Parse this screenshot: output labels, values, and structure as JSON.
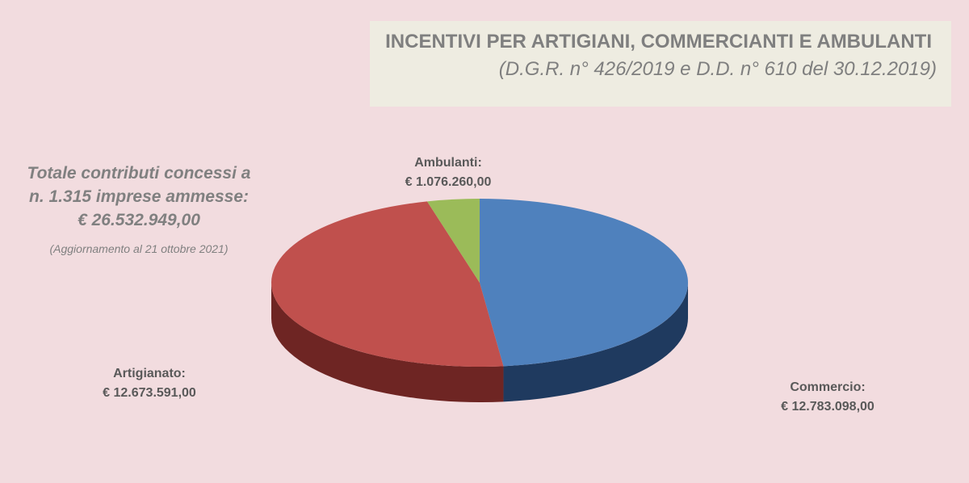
{
  "header": {
    "title": "INCENTIVI PER ARTIGIANI, COMMERCIANTI E AMBULANTI",
    "subtitle": "(D.G.R. n° 426/2019 e D.D. n° 610 del 30.12.2019)"
  },
  "summary": {
    "line1": "Totale contributi concessi a",
    "line2": "n. 1.315 imprese ammesse:",
    "line3": "€ 26.532.949,00",
    "note": "(Aggiornamento  al 21 ottobre 2021)"
  },
  "chart_data": {
    "type": "pie",
    "style": "3d",
    "categories": [
      "Commercio",
      "Artigianato",
      "Ambulanti"
    ],
    "values": [
      12783098.0,
      12673591.0,
      1076260.0
    ],
    "labels": [
      {
        "name": "Commercio:",
        "value": "€ 12.783.098,00"
      },
      {
        "name": "Artigianato:",
        "value": "€ 12.673.591,00"
      },
      {
        "name": "Ambulanti:",
        "value": "€ 1.076.260,00"
      }
    ],
    "colors": [
      "#4f81bd",
      "#c0504d",
      "#9bbb59"
    ],
    "side_colors": [
      "#1f3a5f",
      "#6e2523",
      "#5e7a2e"
    ],
    "start_angle": "12 o'clock",
    "direction": "clockwise"
  },
  "colors": {
    "background": "#f2dcdf",
    "title_box": "#eeece1",
    "text_gray": "#7f7f7f",
    "label_text": "#595959"
  }
}
